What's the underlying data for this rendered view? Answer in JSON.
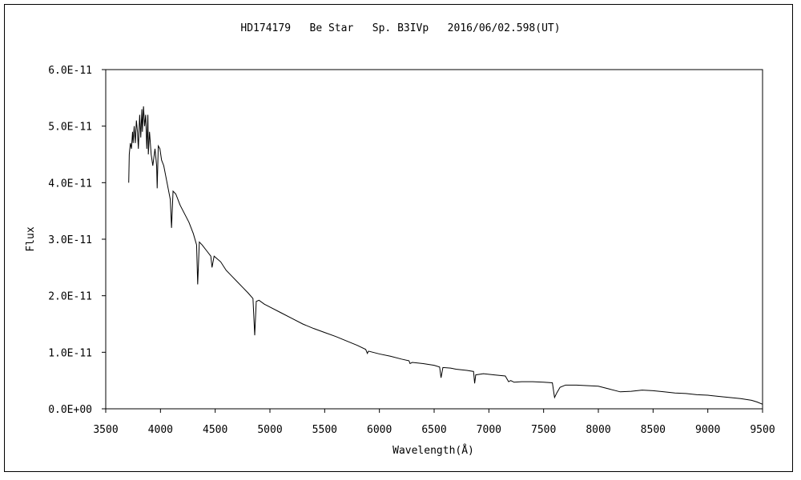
{
  "chart_data": {
    "type": "line",
    "title": "HD174179   Be Star   Sp. B3IVp   2016/06/02.598(UT)",
    "xlabel": "Wavelength(Å)",
    "ylabel": "Flux",
    "xlim": [
      3500,
      9500
    ],
    "ylim": [
      0,
      6e-11
    ],
    "x_ticks": [
      3500,
      4000,
      4500,
      5000,
      5500,
      6000,
      6500,
      7000,
      7500,
      8000,
      8500,
      9000,
      9500
    ],
    "y_ticks": [
      0,
      1e-11,
      2e-11,
      3e-11,
      4e-11,
      5e-11,
      6e-11
    ],
    "y_tick_labels": [
      "0.0E+00",
      "1.0E-11",
      "2.0E-11",
      "3.0E-11",
      "4.0E-11",
      "5.0E-11",
      "6.0E-11"
    ],
    "grid": false,
    "legend": "none",
    "line_color": "#000000",
    "series": [
      {
        "x": [
          3710,
          3715,
          3725,
          3735,
          3745,
          3750,
          3760,
          3770,
          3780,
          3790,
          3798,
          3810,
          3820,
          3830,
          3835,
          3845,
          3855,
          3865,
          3875,
          3885,
          3889,
          3900,
          3915,
          3930,
          3950,
          3965,
          3970,
          3980,
          3995,
          4010,
          4030,
          4060,
          4090,
          4101,
          4115,
          4140,
          4180,
          4220,
          4260,
          4300,
          4330,
          4340,
          4355,
          4380,
          4420,
          4460,
          4471,
          4490,
          4550,
          4600,
          4650,
          4700,
          4750,
          4800,
          4845,
          4861,
          4875,
          4900,
          4950,
          5000,
          5100,
          5200,
          5300,
          5400,
          5500,
          5600,
          5700,
          5800,
          5875,
          5890,
          5900,
          6000,
          6100,
          6200,
          6270,
          6280,
          6300,
          6400,
          6500,
          6550,
          6563,
          6580,
          6650,
          6700,
          6800,
          6860,
          6870,
          6880,
          6950,
          7050,
          7150,
          7180,
          7200,
          7230,
          7300,
          7400,
          7500,
          7580,
          7600,
          7620,
          7650,
          7700,
          7800,
          8000,
          8100,
          8200,
          8300,
          8400,
          8500,
          8600,
          8700,
          8800,
          8900,
          9000,
          9100,
          9200,
          9300,
          9400,
          9450,
          9500
        ],
        "y": [
          4e-11,
          4.5e-11,
          4.7e-11,
          4.6e-11,
          4.9e-11,
          4.7e-11,
          5e-11,
          4.7e-11,
          5.1e-11,
          4.9e-11,
          4.6e-11,
          5.2e-11,
          4.8e-11,
          5.3e-11,
          4.9e-11,
          5.35e-11,
          5e-11,
          5.2e-11,
          4.6e-11,
          5.2e-11,
          4.5e-11,
          4.9e-11,
          4.5e-11,
          4.3e-11,
          4.6e-11,
          4.3e-11,
          3.9e-11,
          4.65e-11,
          4.6e-11,
          4.4e-11,
          4.3e-11,
          4e-11,
          3.7e-11,
          3.2e-11,
          3.85e-11,
          3.8e-11,
          3.6e-11,
          3.45e-11,
          3.3e-11,
          3.1e-11,
          2.9e-11,
          2.2e-11,
          2.95e-11,
          2.9e-11,
          2.8e-11,
          2.7e-11,
          2.5e-11,
          2.7e-11,
          2.6e-11,
          2.45e-11,
          2.35e-11,
          2.25e-11,
          2.15e-11,
          2.05e-11,
          1.95e-11,
          1.3e-11,
          1.9e-11,
          1.92e-11,
          1.85e-11,
          1.8e-11,
          1.7e-11,
          1.6e-11,
          1.5e-11,
          1.42e-11,
          1.35e-11,
          1.28e-11,
          1.2e-11,
          1.12e-11,
          1.05e-11,
          9.8e-12,
          1.02e-11,
          9.7e-12,
          9.3e-12,
          8.8e-12,
          8.5e-12,
          8e-12,
          8.2e-12,
          8e-12,
          7.7e-12,
          7.4e-12,
          5.5e-12,
          7.3e-12,
          7.2e-12,
          7e-12,
          6.8e-12,
          6.6e-12,
          4.5e-12,
          6e-12,
          6.2e-12,
          6e-12,
          5.8e-12,
          4.8e-12,
          5e-12,
          4.7e-12,
          4.8e-12,
          4.8e-12,
          4.7e-12,
          4.6e-12,
          2e-12,
          2.8e-12,
          3.8e-12,
          4.2e-12,
          4.2e-12,
          4e-12,
          3.5e-12,
          3e-12,
          3.1e-12,
          3.3e-12,
          3.2e-12,
          3e-12,
          2.8e-12,
          2.7e-12,
          2.5e-12,
          2.4e-12,
          2.2e-12,
          2e-12,
          1.8e-12,
          1.5e-12,
          1.2e-12,
          8e-13
        ]
      }
    ]
  }
}
